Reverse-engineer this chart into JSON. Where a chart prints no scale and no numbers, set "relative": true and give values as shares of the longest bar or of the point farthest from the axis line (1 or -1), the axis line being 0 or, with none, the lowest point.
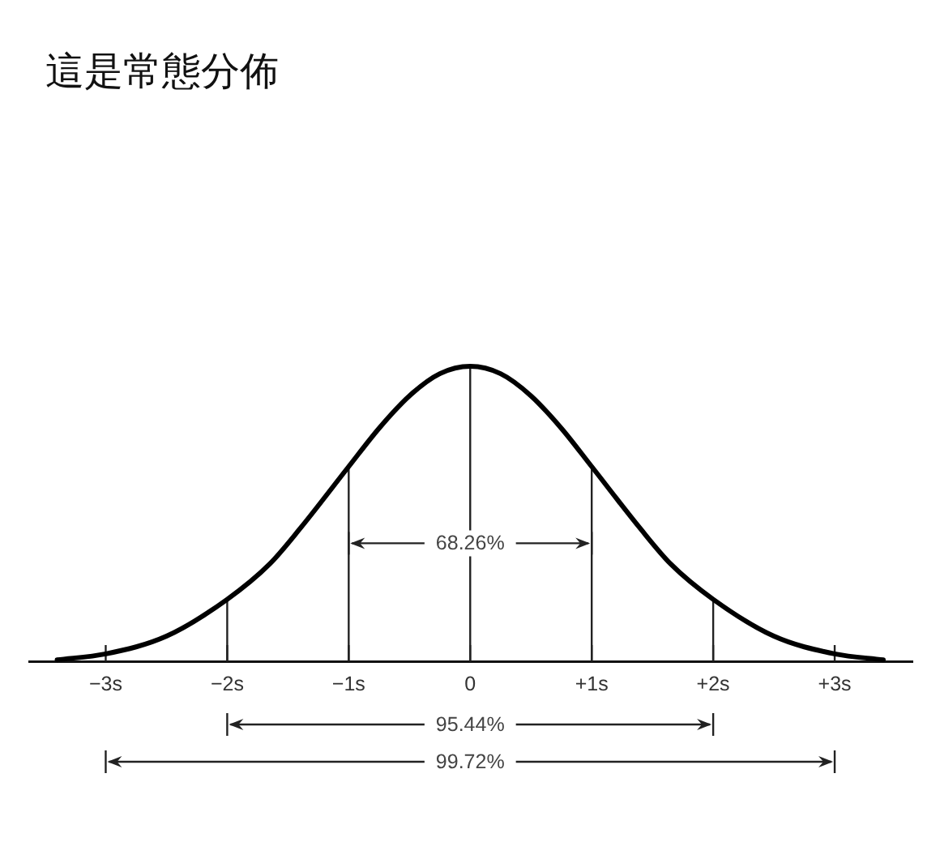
{
  "chart_data": {
    "type": "line",
    "title": "這是常態分佈",
    "relative": true,
    "x": [
      -3.4,
      -3,
      -2.5,
      -2,
      -1.65,
      -1.4,
      -1,
      -0.75,
      -0.5,
      -0.25,
      0,
      0.25,
      0.5,
      0.75,
      1,
      1.4,
      1.65,
      2,
      2.5,
      3,
      3.4
    ],
    "values": [
      0.005,
      0.025,
      0.085,
      0.21,
      0.33,
      0.45,
      0.66,
      0.79,
      0.9,
      0.975,
      1,
      0.975,
      0.9,
      0.79,
      0.66,
      0.45,
      0.33,
      0.21,
      0.085,
      0.025,
      0.005
    ],
    "color": "#000000",
    "marker": "none",
    "line_style": "solid",
    "xlim": [
      -3.63,
      3.64
    ],
    "xticks": [
      {
        "value": -3,
        "label": "−3s"
      },
      {
        "value": -2,
        "label": "−2s"
      },
      {
        "value": -1,
        "label": "−1s"
      },
      0,
      {
        "value": 1,
        "label": "+1s"
      },
      {
        "value": 2,
        "label": "+2s"
      },
      {
        "value": 3,
        "label": "+3s"
      }
    ],
    "ref_lines": [
      {
        "axis": "x",
        "value": -2
      },
      {
        "axis": "x",
        "value": -1
      },
      {
        "axis": "x",
        "value": 0
      },
      {
        "axis": "x",
        "value": 1
      },
      {
        "axis": "x",
        "value": 2
      }
    ],
    "annotations": [
      "68.26%",
      "95.44%",
      "99.72%"
    ]
  }
}
